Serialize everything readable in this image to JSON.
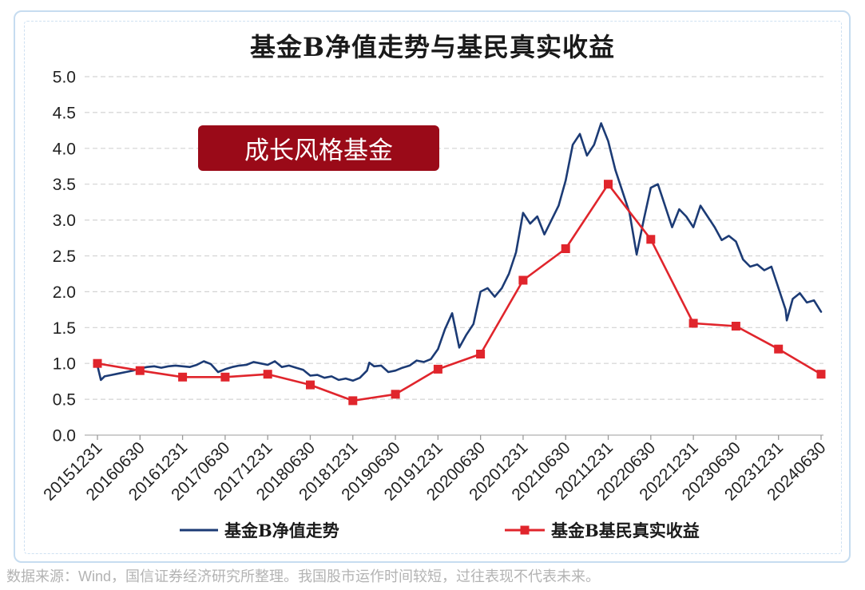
{
  "colors": {
    "frame_border": "#c6dcf0",
    "annotation_background": "#9a0a18",
    "gridline": "#d3d3d3"
  },
  "footer": "数据来源：Wind，国信证券经济研究所整理。我国股市运作时间较短，过往表现不代表未来。",
  "chart_data": {
    "type": "line",
    "title": "基金B净值走势与基民真实收益",
    "annotation": "成长风格基金",
    "x_tick_labels": [
      "20151231",
      "20160630",
      "20161231",
      "20170630",
      "20171231",
      "20180630",
      "20181231",
      "20190630",
      "20191231",
      "20200630",
      "20201231",
      "20210630",
      "20211231",
      "20220630",
      "20221231",
      "20230630",
      "20231231",
      "20240630"
    ],
    "y_tick_labels": [
      "5.0",
      "4.5",
      "4.0",
      "3.5",
      "3.0",
      "2.5",
      "2.0",
      "1.5",
      "1.0",
      "0.5",
      "0.0"
    ],
    "ylim": [
      0,
      5
    ],
    "grid": true,
    "grid_style": "horizontal dashed",
    "legend_position": "bottom",
    "series": [
      {
        "name": "基金B净值走势",
        "color": "#1c3b75",
        "marker": "none",
        "x": [
          "20151231",
          "20160115",
          "20160131",
          "20160229",
          "20160331",
          "20160430",
          "20160531",
          "20160630",
          "20160731",
          "20160831",
          "20160930",
          "20161031",
          "20161130",
          "20161231",
          "20170131",
          "20170228",
          "20170331",
          "20170430",
          "20170531",
          "20170630",
          "20170731",
          "20170831",
          "20170930",
          "20171031",
          "20171130",
          "20171231",
          "20180131",
          "20180228",
          "20180331",
          "20180430",
          "20180531",
          "20180630",
          "20180731",
          "20180831",
          "20180930",
          "20181031",
          "20181130",
          "20181231",
          "20190131",
          "20190228",
          "20190310",
          "20190331",
          "20190430",
          "20190531",
          "20190630",
          "20190731",
          "20190831",
          "20190930",
          "20191031",
          "20191130",
          "20191231",
          "20200131",
          "20200229",
          "20200331",
          "20200430",
          "20200531",
          "20200630",
          "20200731",
          "20200831",
          "20200930",
          "20201031",
          "20201130",
          "20201231",
          "20210131",
          "20210228",
          "20210331",
          "20210430",
          "20210531",
          "20210630",
          "20210731",
          "20210831",
          "20210930",
          "20211031",
          "20211130",
          "20211231",
          "20220131",
          "20220228",
          "20220331",
          "20220430",
          "20220531",
          "20220630",
          "20220731",
          "20220831",
          "20220930",
          "20221031",
          "20221130",
          "20221231",
          "20230131",
          "20230228",
          "20230331",
          "20230430",
          "20230531",
          "20230630",
          "20230731",
          "20230831",
          "20230930",
          "20231031",
          "20231130",
          "20231231",
          "20240131",
          "20240205",
          "20240229",
          "20240331",
          "20240430",
          "20240531",
          "20240630"
        ],
        "y": [
          0.97,
          0.77,
          0.82,
          0.84,
          0.86,
          0.88,
          0.9,
          0.93,
          0.95,
          0.96,
          0.94,
          0.96,
          0.97,
          0.96,
          0.95,
          0.98,
          1.03,
          0.99,
          0.88,
          0.92,
          0.95,
          0.97,
          0.98,
          1.02,
          1.0,
          0.98,
          1.03,
          0.95,
          0.97,
          0.94,
          0.91,
          0.83,
          0.84,
          0.8,
          0.82,
          0.77,
          0.79,
          0.76,
          0.8,
          0.9,
          1.01,
          0.96,
          0.97,
          0.88,
          0.9,
          0.94,
          0.97,
          1.04,
          1.02,
          1.06,
          1.2,
          1.48,
          1.7,
          1.22,
          1.4,
          1.55,
          2.0,
          2.05,
          1.93,
          2.05,
          2.25,
          2.55,
          3.1,
          2.95,
          3.05,
          2.8,
          3.0,
          3.2,
          3.55,
          4.05,
          4.2,
          3.9,
          4.05,
          4.35,
          4.1,
          3.7,
          3.4,
          3.1,
          2.52,
          3.0,
          3.45,
          3.5,
          3.2,
          2.9,
          3.15,
          3.05,
          2.9,
          3.2,
          3.05,
          2.9,
          2.72,
          2.78,
          2.7,
          2.45,
          2.35,
          2.38,
          2.3,
          2.35,
          2.05,
          1.75,
          1.6,
          1.9,
          1.98,
          1.85,
          1.88,
          1.72
        ]
      },
      {
        "name": "基金B基民真实收益",
        "color": "#e0252c",
        "marker": "square",
        "x": [
          "20151231",
          "20160630",
          "20161231",
          "20170630",
          "20171231",
          "20180630",
          "20181231",
          "20190630",
          "20191231",
          "20200630",
          "20201231",
          "20210630",
          "20211231",
          "20220630",
          "20221231",
          "20230630",
          "20231231",
          "20240630"
        ],
        "y": [
          1.0,
          0.9,
          0.81,
          0.81,
          0.85,
          0.7,
          0.48,
          0.57,
          0.92,
          1.13,
          2.16,
          2.6,
          3.5,
          2.73,
          1.56,
          1.52,
          1.2,
          0.85
        ]
      }
    ]
  }
}
